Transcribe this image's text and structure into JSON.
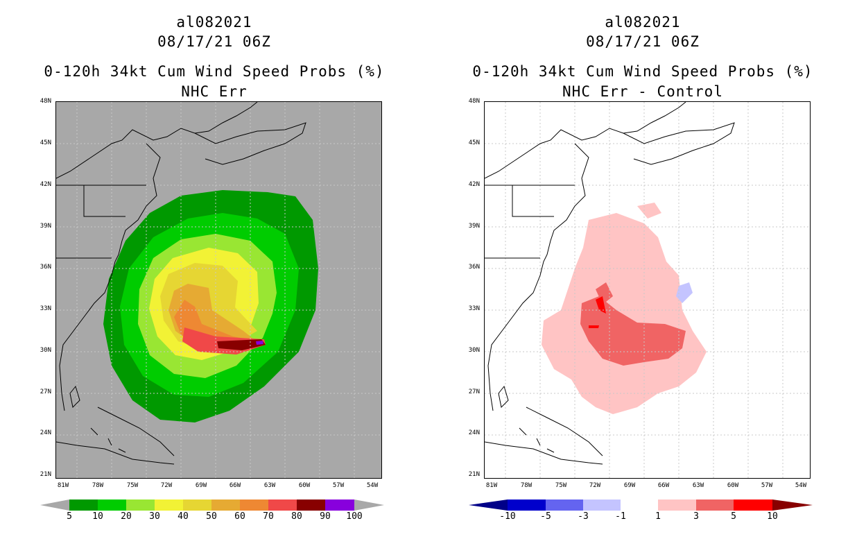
{
  "left_panel": {
    "title_line1": "al082021",
    "title_line2": "08/17/21 06Z",
    "title_line3": "0-120h 34kt Cum Wind Speed Probs (%)",
    "title_line4": "NHC Err",
    "colorbar": {
      "labels": [
        "5",
        "10",
        "20",
        "30",
        "40",
        "50",
        "60",
        "70",
        "80",
        "90",
        "100"
      ],
      "colors": [
        "#009900",
        "#00cc00",
        "#99e633",
        "#f2f235",
        "#e6d633",
        "#e6aa33",
        "#ee8833",
        "#f04848",
        "#880000",
        "#8800dd"
      ],
      "under_color": "#a8a8a8",
      "over_color": "#a8a8a8"
    }
  },
  "right_panel": {
    "title_line1": "al082021",
    "title_line2": "08/17/21 06Z",
    "title_line3": "0-120h 34kt Cum Wind Speed Probs (%)",
    "title_line4": "NHC Err - Control",
    "colorbar": {
      "labels": [
        "-10",
        "-5",
        "-3",
        "-1",
        "1",
        "3",
        "5",
        "10"
      ],
      "colors": [
        "#0000cc",
        "#6464f0",
        "#c4c4ff",
        "#ffffff",
        "#ffc4c4",
        "#f06464",
        "#ff0000"
      ],
      "under_color": "#000088",
      "over_color": "#880000"
    }
  },
  "lat_labels": [
    "48N",
    "45N",
    "42N",
    "39N",
    "36N",
    "33N",
    "30N",
    "27N",
    "24N",
    "21N"
  ],
  "lon_labels": [
    "81W",
    "78W",
    "75W",
    "72W",
    "69W",
    "66W",
    "63W",
    "60W",
    "57W",
    "54W"
  ],
  "colors": {
    "land_bg": "#a8a8a8",
    "coast": "#000000",
    "grid": "#c8c8c8"
  }
}
